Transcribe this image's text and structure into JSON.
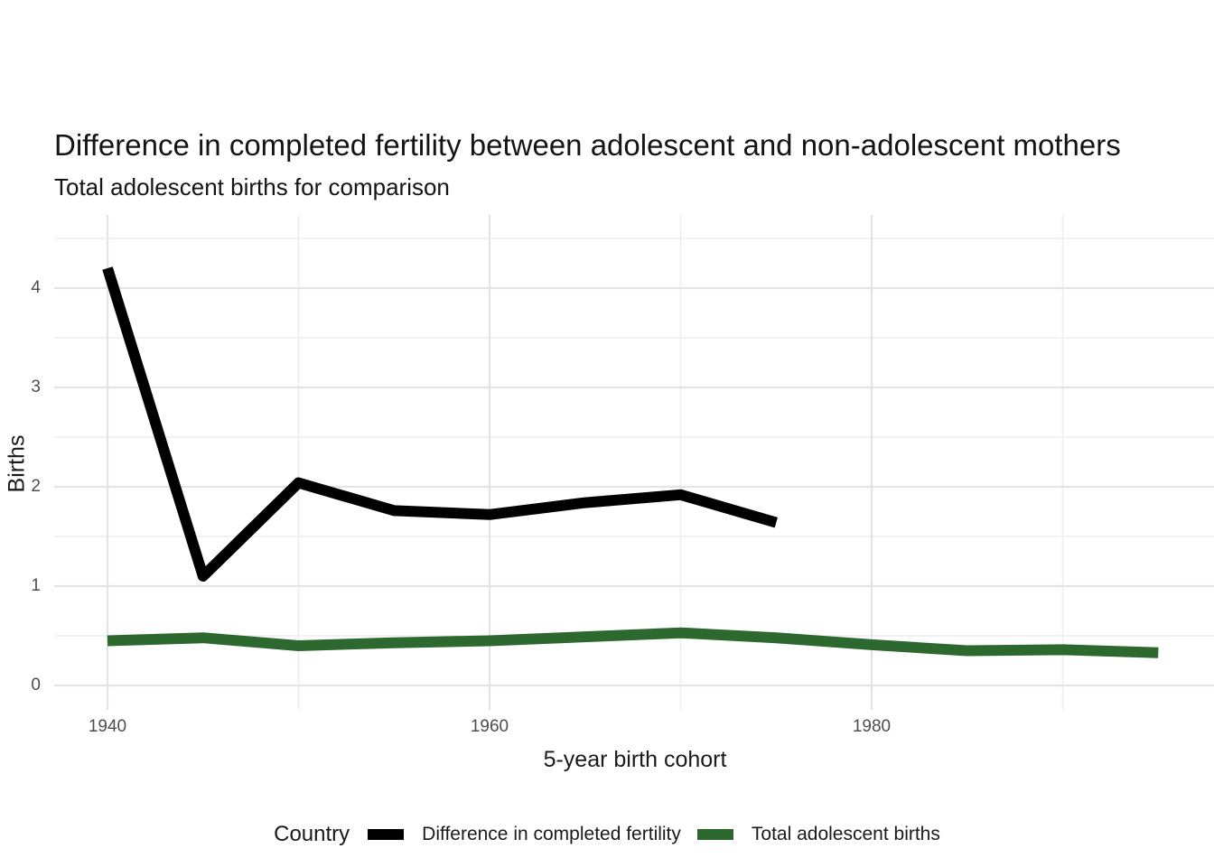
{
  "header": {
    "title": "Difference in completed fertility between adolescent and non-adolescent mothers",
    "subtitle": "Total adolescent births for comparison"
  },
  "colors": {
    "difference_line": "#000000",
    "total_births_line": "#2d682e",
    "grid_major": "#e4e4e4",
    "grid_minor": "#eeeeee",
    "tick_text": "#4d4d4d",
    "text": "#1a1a1a"
  },
  "chart_data": {
    "type": "line",
    "title": "Difference in completed fertility between adolescent and non-adolescent mothers",
    "subtitle": "Total adolescent births for comparison",
    "xlabel": "5-year birth cohort",
    "ylabel": "Births",
    "legend_title": "Country",
    "legend_position": "bottom",
    "grid": "on",
    "xlim": [
      1937.3,
      1997.9
    ],
    "ylim": [
      -0.25,
      4.75
    ],
    "x_ticks": [
      1940,
      1960,
      1980
    ],
    "x_minor": [
      1950,
      1970,
      1990
    ],
    "y_ticks": [
      0,
      1,
      2,
      3,
      4
    ],
    "y_minor": [
      0.5,
      1.5,
      2.5,
      3.5,
      4.5
    ],
    "series": [
      {
        "name": "Difference in completed fertility",
        "color": "#000000",
        "x": [
          1940,
          1945,
          1950,
          1955,
          1960,
          1965,
          1970,
          1975
        ],
        "values": [
          4.2,
          1.1,
          2.04,
          1.76,
          1.72,
          1.84,
          1.92,
          1.64
        ]
      },
      {
        "name": "Total adolescent births",
        "color": "#2d682e",
        "x": [
          1940,
          1945,
          1950,
          1955,
          1960,
          1965,
          1970,
          1975,
          1980,
          1985,
          1990,
          1995
        ],
        "values": [
          0.45,
          0.48,
          0.4,
          0.43,
          0.45,
          0.49,
          0.53,
          0.48,
          0.41,
          0.35,
          0.36,
          0.33
        ]
      }
    ]
  }
}
